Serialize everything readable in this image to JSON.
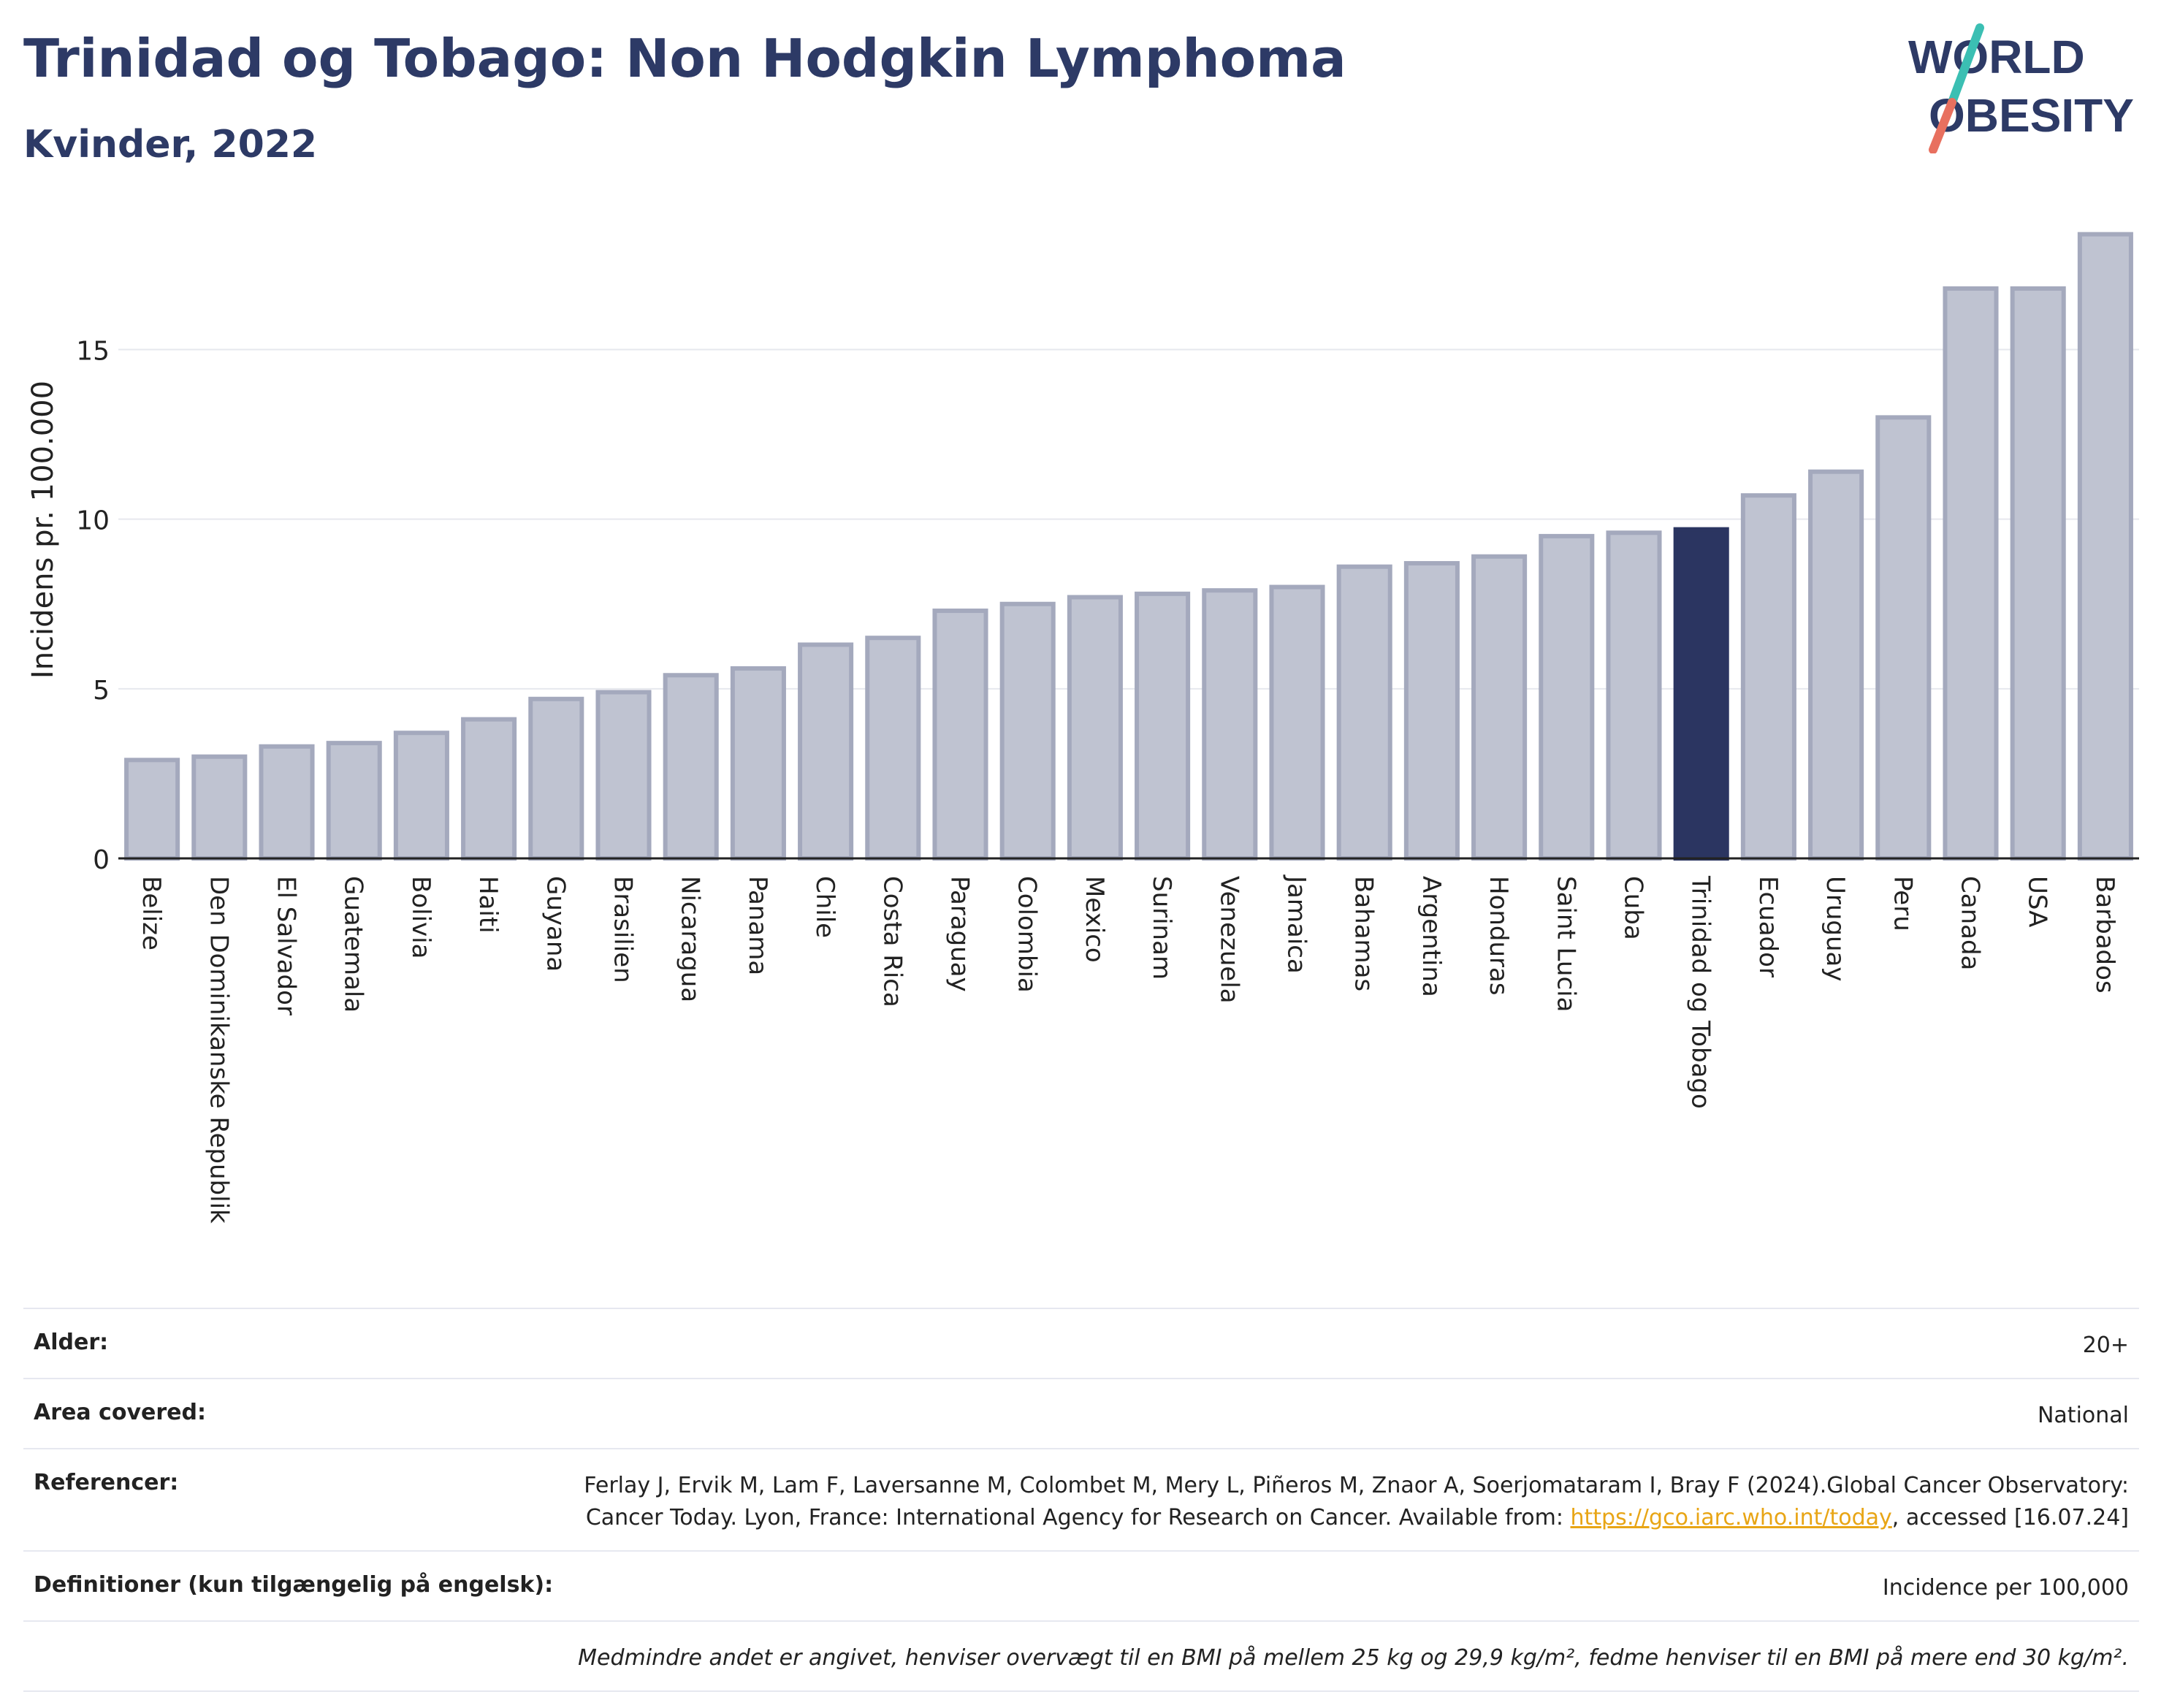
{
  "header": {
    "title": "Trinidad og Tobago: Non Hodgkin Lymphoma",
    "subtitle": "Kvinder, 2022"
  },
  "logo": {
    "line1": "WORLD",
    "line2": "OBESITY",
    "accent_colors": [
      "#3bbfb3",
      "#e8705f"
    ]
  },
  "colors": {
    "bar": "#bfc3d1",
    "bar_border": "#a4a9bd",
    "highlight": "#2b3561",
    "grid": "#e6e8ee",
    "text": "#2d3a66"
  },
  "chart_data": {
    "type": "bar",
    "ylabel": "Incidens pr. 100.000",
    "ylim": [
      0,
      18.5
    ],
    "yticks": [
      0,
      5,
      10,
      15
    ],
    "highlight": "Trinidad og Tobago",
    "categories": [
      "Belize",
      "Den Dominikanske Republik",
      "El Salvador",
      "Guatemala",
      "Bolivia",
      "Haiti",
      "Guyana",
      "Brasilien",
      "Nicaragua",
      "Panama",
      "Chile",
      "Costa Rica",
      "Paraguay",
      "Colombia",
      "Mexico",
      "Surinam",
      "Venezuela",
      "Jamaica",
      "Bahamas",
      "Argentina",
      "Honduras",
      "Saint Lucia",
      "Cuba",
      "Trinidad og Tobago",
      "Ecuador",
      "Uruguay",
      "Peru",
      "Canada",
      "USA",
      "Barbados"
    ],
    "values": [
      2.9,
      3.0,
      3.3,
      3.4,
      3.7,
      4.1,
      4.7,
      4.9,
      5.4,
      5.6,
      6.3,
      6.5,
      7.3,
      7.5,
      7.7,
      7.8,
      7.9,
      8.0,
      8.6,
      8.7,
      8.9,
      9.5,
      9.6,
      9.7,
      10.7,
      11.4,
      13.0,
      16.8,
      16.8,
      18.4
    ]
  },
  "info": {
    "age_label": "Alder:",
    "age_value": "20+",
    "area_label": "Area covered:",
    "area_value": "National",
    "ref_label": "Referencer:",
    "ref_text1": "Ferlay J, Ervik M, Lam F, Laversanne M, Colombet M, Mery L, Piñeros M, Znaor A, Soerjomataram I, Bray F (2024).Global Cancer Observatory: Cancer Today. Lyon, France: International Agency for Research on Cancer. Available from: ",
    "ref_link": "https://gco.iarc.who.int/today",
    "ref_text2": ", accessed [16.07.24]",
    "def_label": "Definitioner (kun tilgængelig på engelsk):",
    "def_value": "Incidence per 100,000",
    "note": "Medmindre andet er angivet, henviser overvægt til en BMI på mellem 25 kg og 29,9 kg/m², fedme henviser til en BMI på mere end 30 kg/m²."
  }
}
